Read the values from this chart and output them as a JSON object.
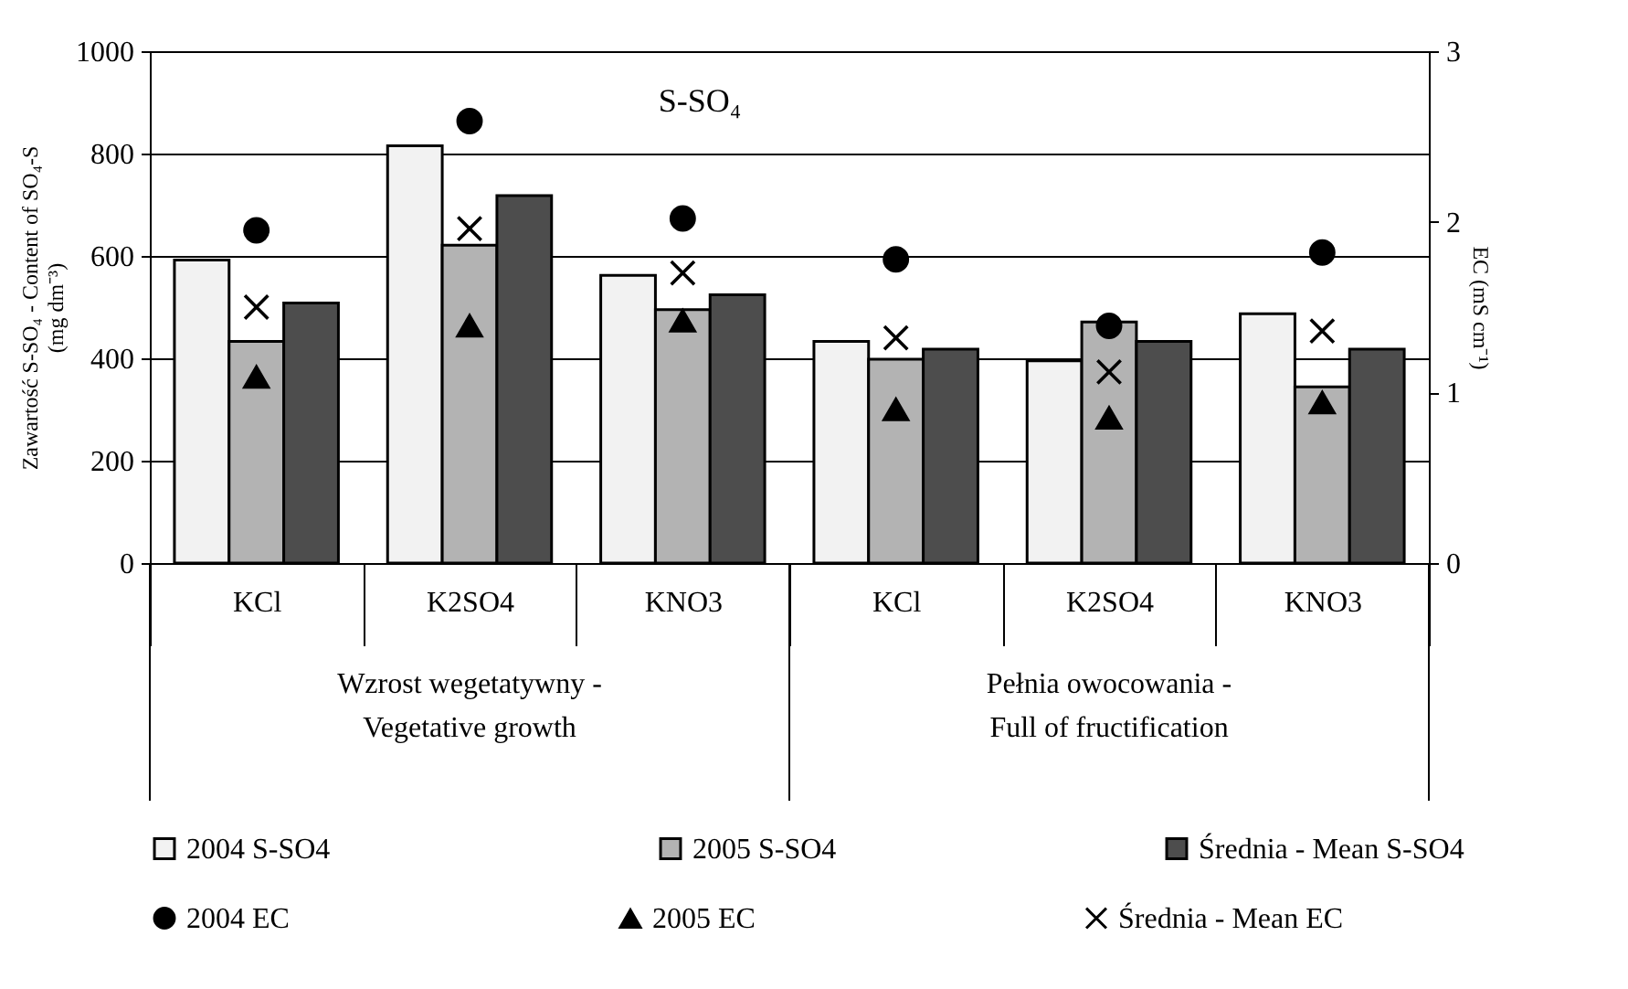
{
  "chart_data": {
    "type": "bar",
    "title": "S-SO₄",
    "categories": [
      "KCl",
      "K2SO4",
      "KNO3",
      "KCl",
      "K2SO4",
      "KNO3"
    ],
    "series": [
      {
        "name": "2004 S-SO4",
        "color": "#f2f2f2",
        "values": [
          592,
          815,
          562,
          433,
          395,
          487
        ]
      },
      {
        "name": "2005 S-SO4",
        "color": "#b3b3b3",
        "values": [
          433,
          621,
          495,
          398,
          471,
          344
        ]
      },
      {
        "name": "Średnia - Mean S-SO4",
        "color": "#4d4d4d",
        "values": [
          508,
          718,
          524,
          418,
          433,
          418
        ]
      },
      {
        "name": "2004 EC",
        "type": "scatter",
        "axis": "y2",
        "marker": "circle",
        "color": "#000000",
        "values": [
          1.95,
          2.59,
          2.02,
          1.78,
          1.39,
          1.82
        ]
      },
      {
        "name": "2005 EC",
        "type": "scatter",
        "axis": "y2",
        "marker": "triangle",
        "color": "#000000",
        "values": [
          1.09,
          1.39,
          1.42,
          0.9,
          0.85,
          0.94
        ]
      },
      {
        "name": "Średnia - Mean EC",
        "type": "scatter",
        "axis": "y2",
        "marker": "cross",
        "color": "#000000",
        "values": [
          1.5,
          1.96,
          1.7,
          1.32,
          1.12,
          1.36
        ]
      }
    ],
    "ylabel": "Zawartość S-SO₄ - Content of SO₄-S\n(mg dm⁻³)",
    "y2label": "EC (mS cm⁻¹)",
    "ylim": [
      0,
      1000
    ],
    "yticks": [
      0,
      200,
      400,
      600,
      800,
      1000
    ],
    "y2lim": [
      0,
      3
    ],
    "y2ticks": [
      0,
      1,
      2,
      3
    ],
    "annotations": [
      "Wzrost wegetatywny -\nVegetative growth",
      "Pełnia owocowania -\nFull of fructification"
    ],
    "grid": "y",
    "legend": "bottom"
  }
}
